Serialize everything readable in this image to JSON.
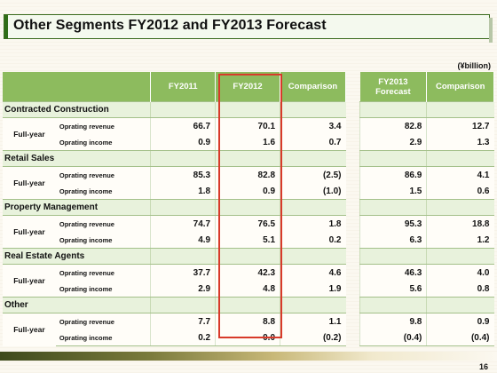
{
  "title": "Other Segments FY2012 and FY2013 Forecast",
  "unit": "(¥billion)",
  "headers": {
    "fy2011": "FY2011",
    "fy2012": "FY2012",
    "comparison": "Comparison",
    "fy2013_forecast_line1": "FY2013",
    "fy2013_forecast_line2": "Forecast",
    "forecast_comparison": "Comparison"
  },
  "row_labels": {
    "period": "Full-year",
    "revenue": "Oprating revenue",
    "income": "Oprating income"
  },
  "segments": [
    {
      "name": "Contracted Construction",
      "revenue": {
        "fy2011": "66.7",
        "fy2012": "70.1",
        "comparison": "3.4",
        "fy2013": "82.8",
        "fc_comparison": "12.7"
      },
      "income": {
        "fy2011": "0.9",
        "fy2012": "1.6",
        "comparison": "0.7",
        "fy2013": "2.9",
        "fc_comparison": "1.3"
      }
    },
    {
      "name": "Retail Sales",
      "revenue": {
        "fy2011": "85.3",
        "fy2012": "82.8",
        "comparison": "(2.5)",
        "fy2013": "86.9",
        "fc_comparison": "4.1"
      },
      "income": {
        "fy2011": "1.8",
        "fy2012": "0.9",
        "comparison": "(1.0)",
        "fy2013": "1.5",
        "fc_comparison": "0.6"
      }
    },
    {
      "name": "Property Management",
      "revenue": {
        "fy2011": "74.7",
        "fy2012": "76.5",
        "comparison": "1.8",
        "fy2013": "95.3",
        "fc_comparison": "18.8"
      },
      "income": {
        "fy2011": "4.9",
        "fy2012": "5.1",
        "comparison": "0.2",
        "fy2013": "6.3",
        "fc_comparison": "1.2"
      }
    },
    {
      "name": "Real Estate Agents",
      "revenue": {
        "fy2011": "37.7",
        "fy2012": "42.3",
        "comparison": "4.6",
        "fy2013": "46.3",
        "fc_comparison": "4.0"
      },
      "income": {
        "fy2011": "2.9",
        "fy2012": "4.8",
        "comparison": "1.9",
        "fy2013": "5.6",
        "fc_comparison": "0.8"
      }
    },
    {
      "name": "Other",
      "revenue": {
        "fy2011": "7.7",
        "fy2012": "8.8",
        "comparison": "1.1",
        "fy2013": "9.8",
        "fc_comparison": "0.9"
      },
      "income": {
        "fy2011": "0.2",
        "fy2012": "0.0",
        "comparison": "(0.2)",
        "fy2013": "(0.4)",
        "fc_comparison": "(0.4)"
      }
    }
  ],
  "page_number": "16",
  "colors": {
    "header_green": "#8dbb5e",
    "highlight_red": "#d83a2a",
    "title_green": "#2f6d17"
  }
}
